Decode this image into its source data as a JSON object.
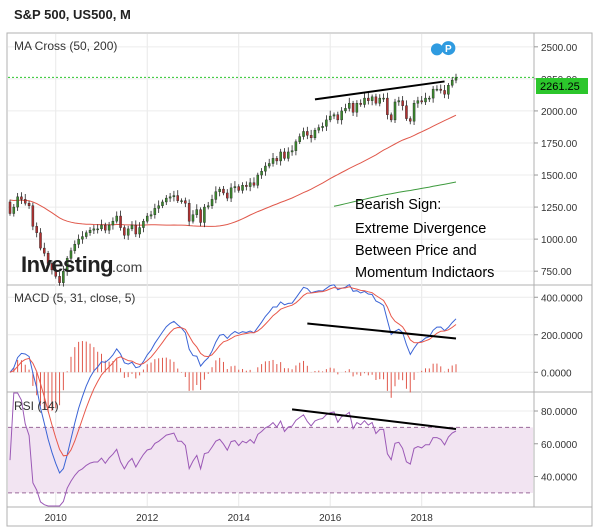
{
  "header": {
    "title": "S&P 500, US500, M"
  },
  "colors": {
    "up": "#3c8a2e",
    "down": "#b03030",
    "ma50": "#e0584b",
    "ma200": "#3d9a3d",
    "macd": "#3b64d6",
    "signal": "#e8574a",
    "rsi": "#9b59b6",
    "rsi_band": "#f2e4f2",
    "last_price_line": "#2cc62c",
    "event_marker": "#2f9be0"
  },
  "logo": {
    "text": "Investing",
    "suffix": ".com"
  },
  "note_lines": [
    "Bearish Sign:",
    "Extreme Divergence",
    "Between Price and",
    "Momentum Indictaors"
  ],
  "chart_data": [
    {
      "type": "candlestick",
      "title": "MA Cross (50, 200)",
      "x_ticks": [
        "2010",
        "2012",
        "2014",
        "2016",
        "2018"
      ],
      "y_ticks": [
        "2500.00",
        "2250.00",
        "2000.00",
        "1750.00",
        "1500.00",
        "1250.00",
        "1000.00",
        "750.00"
      ],
      "ylim": [
        650,
        2600
      ],
      "last_price_label": "2261.25",
      "last_price": 2261.25,
      "close": [
        1200,
        1250,
        1330,
        1310,
        1280,
        1260,
        1100,
        1050,
        930,
        890,
        810,
        760,
        710,
        660,
        750,
        850,
        910,
        960,
        1000,
        1020,
        1050,
        1070,
        1080,
        1080,
        1110,
        1070,
        1110,
        1140,
        1180,
        1090,
        1030,
        1080,
        1110,
        1040,
        1090,
        1140,
        1180,
        1190,
        1240,
        1260,
        1290,
        1320,
        1330,
        1340,
        1300,
        1300,
        1280,
        1140,
        1190,
        1230,
        1130,
        1250,
        1260,
        1310,
        1370,
        1390,
        1360,
        1320,
        1400,
        1410,
        1380,
        1420,
        1410,
        1440,
        1420,
        1500,
        1530,
        1570,
        1590,
        1630,
        1610,
        1680,
        1630,
        1680,
        1690,
        1760,
        1800,
        1840,
        1810,
        1790,
        1850,
        1870,
        1880,
        1930,
        1960,
        1970,
        1930,
        2000,
        2020,
        2060,
        1990,
        2060,
        2050,
        2100,
        2080,
        2110,
        2060,
        2100,
        2100,
        1970,
        1930,
        2070,
        2080,
        2040,
        1940,
        1920,
        2060,
        2080,
        2070,
        2100,
        2100,
        2170,
        2170,
        2160,
        2130,
        2200,
        2240,
        2260
      ]
    },
    {
      "type": "line",
      "title": "MACD (5, 31, close, 5)",
      "x_ticks": [
        "2010",
        "2012",
        "2014",
        "2016",
        "2018"
      ],
      "y_ticks": [
        "400.0000",
        "200.0000",
        "0.0000"
      ],
      "ylim": [
        -100,
        460
      ]
    },
    {
      "type": "line",
      "title": "RSI (14)",
      "x_ticks": [
        "2010",
        "2012",
        "2014",
        "2016",
        "2018"
      ],
      "y_ticks": [
        "80.0000",
        "60.0000",
        "40.0000"
      ],
      "ylim": [
        22,
        91
      ],
      "bands": [
        30,
        70
      ]
    }
  ]
}
